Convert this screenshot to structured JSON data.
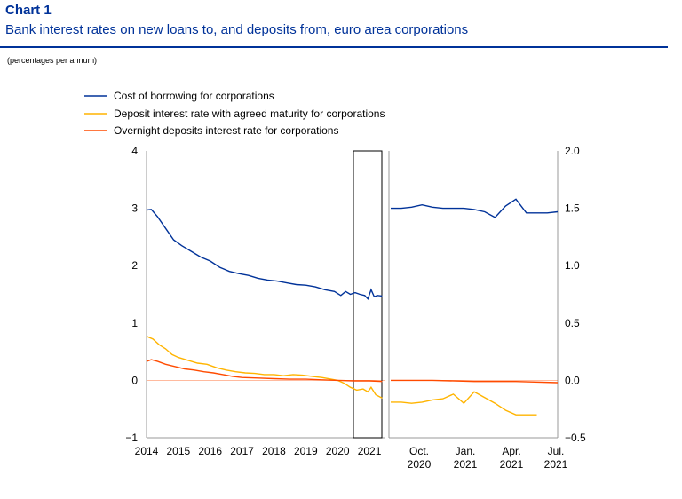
{
  "header": {
    "chart_number": "Chart 1",
    "title": "Bank interest rates on new loans to, and deposits from, euro area corporations",
    "subtitle": "(percentages per annum)"
  },
  "chart_data": [
    {
      "type": "line",
      "panel": "left",
      "x_ticks": [
        "2014",
        "2015",
        "2016",
        "2017",
        "2018",
        "2019",
        "2020",
        "2021"
      ],
      "ylim": [
        -1,
        4
      ],
      "y_ticks": [
        "4",
        "3",
        "2",
        "1",
        "0",
        "−1"
      ],
      "legend_position": "top-left",
      "series": [
        {
          "name": "Cost of borrowing for corporations",
          "color": "#003299",
          "points": [
            [
              2014.0,
              2.97
            ],
            [
              2014.15,
              2.98
            ],
            [
              2014.35,
              2.85
            ],
            [
              2014.6,
              2.65
            ],
            [
              2014.85,
              2.45
            ],
            [
              2015.1,
              2.35
            ],
            [
              2015.4,
              2.25
            ],
            [
              2015.7,
              2.15
            ],
            [
              2016.0,
              2.08
            ],
            [
              2016.3,
              1.97
            ],
            [
              2016.6,
              1.9
            ],
            [
              2016.9,
              1.86
            ],
            [
              2017.2,
              1.83
            ],
            [
              2017.5,
              1.78
            ],
            [
              2017.8,
              1.75
            ],
            [
              2018.1,
              1.73
            ],
            [
              2018.4,
              1.7
            ],
            [
              2018.7,
              1.67
            ],
            [
              2019.0,
              1.66
            ],
            [
              2019.3,
              1.63
            ],
            [
              2019.6,
              1.58
            ],
            [
              2019.9,
              1.55
            ],
            [
              2020.1,
              1.48
            ],
            [
              2020.25,
              1.55
            ],
            [
              2020.4,
              1.5
            ],
            [
              2020.55,
              1.53
            ],
            [
              2020.7,
              1.5
            ],
            [
              2020.85,
              1.48
            ],
            [
              2020.95,
              1.42
            ],
            [
              2021.05,
              1.58
            ],
            [
              2021.15,
              1.46
            ],
            [
              2021.25,
              1.48
            ],
            [
              2021.4,
              1.47
            ]
          ]
        },
        {
          "name": "Deposit interest rate with agreed maturity for corporations",
          "color": "#ffb400",
          "points": [
            [
              2014.0,
              0.77
            ],
            [
              2014.2,
              0.72
            ],
            [
              2014.4,
              0.62
            ],
            [
              2014.6,
              0.55
            ],
            [
              2014.8,
              0.45
            ],
            [
              2015.0,
              0.4
            ],
            [
              2015.3,
              0.35
            ],
            [
              2015.6,
              0.3
            ],
            [
              2015.9,
              0.28
            ],
            [
              2016.2,
              0.22
            ],
            [
              2016.5,
              0.18
            ],
            [
              2016.8,
              0.15
            ],
            [
              2017.1,
              0.13
            ],
            [
              2017.4,
              0.12
            ],
            [
              2017.7,
              0.1
            ],
            [
              2018.0,
              0.1
            ],
            [
              2018.3,
              0.08
            ],
            [
              2018.6,
              0.1
            ],
            [
              2018.9,
              0.09
            ],
            [
              2019.2,
              0.07
            ],
            [
              2019.5,
              0.05
            ],
            [
              2019.8,
              0.02
            ],
            [
              2020.0,
              0.0
            ],
            [
              2020.2,
              -0.05
            ],
            [
              2020.4,
              -0.12
            ],
            [
              2020.6,
              -0.17
            ],
            [
              2020.8,
              -0.15
            ],
            [
              2020.95,
              -0.2
            ],
            [
              2021.05,
              -0.12
            ],
            [
              2021.2,
              -0.25
            ],
            [
              2021.4,
              -0.31
            ]
          ]
        },
        {
          "name": "Overnight deposits interest rate for corporations",
          "color": "#ff4b00",
          "points": [
            [
              2014.0,
              0.33
            ],
            [
              2014.15,
              0.36
            ],
            [
              2014.35,
              0.33
            ],
            [
              2014.6,
              0.28
            ],
            [
              2014.9,
              0.24
            ],
            [
              2015.2,
              0.2
            ],
            [
              2015.5,
              0.18
            ],
            [
              2015.8,
              0.15
            ],
            [
              2016.1,
              0.13
            ],
            [
              2016.4,
              0.1
            ],
            [
              2016.7,
              0.07
            ],
            [
              2017.0,
              0.05
            ],
            [
              2017.5,
              0.04
            ],
            [
              2018.0,
              0.03
            ],
            [
              2018.5,
              0.02
            ],
            [
              2019.0,
              0.02
            ],
            [
              2019.5,
              0.01
            ],
            [
              2020.0,
              0.0
            ],
            [
              2020.5,
              -0.01
            ],
            [
              2021.0,
              -0.01
            ],
            [
              2021.4,
              -0.02
            ]
          ]
        }
      ]
    },
    {
      "type": "line",
      "panel": "right",
      "x_ticks": [
        "Oct.\n2020",
        "Jan.\n2021",
        "Apr.\n2021",
        "Jul.\n2021"
      ],
      "ylim": [
        -0.5,
        2.0
      ],
      "y_ticks": [
        "2.0",
        "1.5",
        "1.0",
        "0.5",
        "0.0",
        "−0.5"
      ],
      "series": [
        {
          "name": "Cost of borrowing for corporations",
          "color": "#003299",
          "points": [
            [
              0,
              1.5
            ],
            [
              1,
              1.5
            ],
            [
              2,
              1.51
            ],
            [
              3,
              1.53
            ],
            [
              4,
              1.51
            ],
            [
              5,
              1.5
            ],
            [
              6,
              1.5
            ],
            [
              7,
              1.5
            ],
            [
              8,
              1.49
            ],
            [
              9,
              1.47
            ],
            [
              10,
              1.42
            ],
            [
              11,
              1.52
            ],
            [
              12,
              1.58
            ],
            [
              13,
              1.46
            ],
            [
              14,
              1.46
            ],
            [
              15,
              1.46
            ],
            [
              16,
              1.47
            ]
          ]
        },
        {
          "name": "Deposit interest rate with agreed maturity for corporations",
          "color": "#ffb400",
          "points": [
            [
              0,
              -0.19
            ],
            [
              1,
              -0.19
            ],
            [
              2,
              -0.2
            ],
            [
              3,
              -0.19
            ],
            [
              4,
              -0.17
            ],
            [
              5,
              -0.16
            ],
            [
              6,
              -0.12
            ],
            [
              7,
              -0.2
            ],
            [
              8,
              -0.1
            ],
            [
              9,
              -0.15
            ],
            [
              10,
              -0.2
            ],
            [
              11,
              -0.26
            ],
            [
              12,
              -0.3
            ],
            [
              13,
              -0.3
            ],
            [
              14,
              -0.3
            ]
          ]
        },
        {
          "name": "Overnight deposits interest rate for corporations",
          "color": "#ff4b00",
          "points": [
            [
              0,
              0.0
            ],
            [
              4,
              0.0
            ],
            [
              8,
              -0.01
            ],
            [
              12,
              -0.01
            ],
            [
              16,
              -0.02
            ]
          ]
        }
      ]
    }
  ]
}
